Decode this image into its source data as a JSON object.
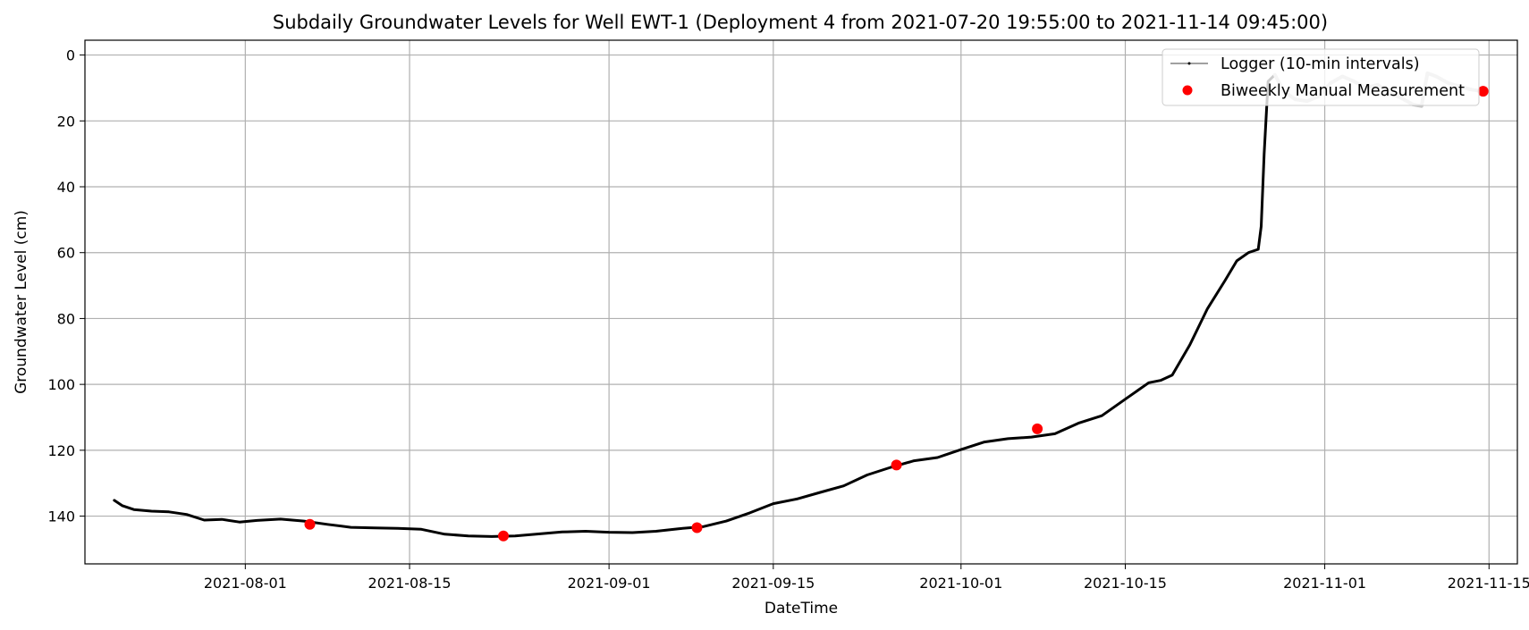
{
  "chart_data": {
    "type": "line",
    "title": "Subdaily Groundwater Levels for Well EWT-1 (Deployment 4 from 2021-07-20 19:55:00 to 2021-11-14 09:45:00)",
    "xlabel": "DateTime",
    "ylabel": "Groundwater Level (cm)",
    "x_ticks": [
      "2021-08-01",
      "2021-08-15",
      "2021-09-01",
      "2021-09-15",
      "2021-10-01",
      "2021-10-15",
      "2021-11-01",
      "2021-11-15"
    ],
    "y_ticks": [
      0,
      20,
      40,
      60,
      80,
      100,
      120,
      140
    ],
    "xlim": [
      "2021-07-18T08:00",
      "2021-11-17T10:00"
    ],
    "ylim": [
      154.5,
      -4.5
    ],
    "y_inverted": true,
    "grid": true,
    "legend_position": "top-right",
    "colors": {
      "logger": "#000000",
      "manual": "#ff0000",
      "grid": "#b0b0b0",
      "logger_after": "#c8c8c8"
    },
    "series": [
      {
        "name": "Logger (10-min intervals)",
        "style": "line",
        "points": [
          [
            "2021-07-20T19:55",
            135.2
          ],
          [
            "2021-07-21T12:00",
            136.8
          ],
          [
            "2021-07-22T12:00",
            138.0
          ],
          [
            "2021-07-24T00:00",
            138.5
          ],
          [
            "2021-07-25T12:00",
            138.7
          ],
          [
            "2021-07-27T00:00",
            139.5
          ],
          [
            "2021-07-28T12:00",
            141.2
          ],
          [
            "2021-07-30T00:00",
            141.0
          ],
          [
            "2021-07-31T12:00",
            141.8
          ],
          [
            "2021-08-02T00:00",
            141.3
          ],
          [
            "2021-08-04T00:00",
            140.9
          ],
          [
            "2021-08-06T00:00",
            141.5
          ],
          [
            "2021-08-08T00:00",
            142.5
          ],
          [
            "2021-08-10T00:00",
            143.4
          ],
          [
            "2021-08-12T00:00",
            143.6
          ],
          [
            "2021-08-14T00:00",
            143.7
          ],
          [
            "2021-08-16T00:00",
            144.0
          ],
          [
            "2021-08-18T00:00",
            145.5
          ],
          [
            "2021-08-20T00:00",
            146.0
          ],
          [
            "2021-08-22T00:00",
            146.2
          ],
          [
            "2021-08-24T00:00",
            146.0
          ],
          [
            "2021-08-26T00:00",
            145.4
          ],
          [
            "2021-08-28T00:00",
            144.8
          ],
          [
            "2021-08-30T00:00",
            144.6
          ],
          [
            "2021-09-01T00:00",
            144.9
          ],
          [
            "2021-09-03T00:00",
            145.0
          ],
          [
            "2021-09-05T00:00",
            144.6
          ],
          [
            "2021-09-07T00:00",
            143.8
          ],
          [
            "2021-09-09T00:00",
            143.2
          ],
          [
            "2021-09-11T00:00",
            141.5
          ],
          [
            "2021-09-13T00:00",
            139.0
          ],
          [
            "2021-09-15T00:00",
            136.2
          ],
          [
            "2021-09-17T00:00",
            134.8
          ],
          [
            "2021-09-19T00:00",
            132.8
          ],
          [
            "2021-09-21T00:00",
            130.8
          ],
          [
            "2021-09-23T00:00",
            127.5
          ],
          [
            "2021-09-25T00:00",
            125.2
          ],
          [
            "2021-09-27T00:00",
            123.2
          ],
          [
            "2021-09-29T00:00",
            122.2
          ],
          [
            "2021-10-01T00:00",
            119.8
          ],
          [
            "2021-10-03T00:00",
            117.5
          ],
          [
            "2021-10-05T00:00",
            116.5
          ],
          [
            "2021-10-07T00:00",
            116.0
          ],
          [
            "2021-10-09T00:00",
            115.0
          ],
          [
            "2021-10-11T00:00",
            111.8
          ],
          [
            "2021-10-13T00:00",
            109.5
          ],
          [
            "2021-10-15T00:00",
            104.5
          ],
          [
            "2021-10-17T00:00",
            99.5
          ],
          [
            "2021-10-18T00:00",
            98.8
          ],
          [
            "2021-10-19T00:00",
            97.2
          ],
          [
            "2021-10-20T12:00",
            88.0
          ],
          [
            "2021-10-22T00:00",
            77.0
          ],
          [
            "2021-10-23T12:00",
            68.5
          ],
          [
            "2021-10-24T12:00",
            62.5
          ],
          [
            "2021-10-25T12:00",
            60.0
          ],
          [
            "2021-10-26T08:00",
            59.0
          ],
          [
            "2021-10-26T14:00",
            52.0
          ],
          [
            "2021-10-26T20:00",
            30.0
          ],
          [
            "2021-10-27T04:00",
            8.0
          ],
          [
            "2021-10-27T18:00",
            6.0
          ],
          [
            "2021-10-28T12:00",
            11.0
          ],
          [
            "2021-10-29T12:00",
            13.5
          ],
          [
            "2021-10-30T12:00",
            14.0
          ],
          [
            "2021-10-31T12:00",
            12.5
          ],
          [
            "2021-11-01T12:00",
            8.5
          ],
          [
            "2021-11-02T12:00",
            6.5
          ],
          [
            "2021-11-03T12:00",
            8.0
          ],
          [
            "2021-11-04T12:00",
            10.0
          ],
          [
            "2021-11-05T12:00",
            9.0
          ],
          [
            "2021-11-06T12:00",
            11.5
          ],
          [
            "2021-11-07T12:00",
            13.0
          ],
          [
            "2021-11-08T12:00",
            15.0
          ],
          [
            "2021-11-09T06:00",
            15.5
          ],
          [
            "2021-11-09T18:00",
            5.5
          ],
          [
            "2021-11-10T12:00",
            6.5
          ],
          [
            "2021-11-11T12:00",
            8.5
          ],
          [
            "2021-11-12T12:00",
            9.5
          ],
          [
            "2021-11-13T12:00",
            10.5
          ],
          [
            "2021-11-14T09:45",
            11.0
          ]
        ]
      },
      {
        "name": "Biweekly Manual Measurement",
        "style": "scatter",
        "points": [
          [
            "2021-08-06T12:00",
            142.5
          ],
          [
            "2021-08-23T00:00",
            146.0
          ],
          [
            "2021-09-08T12:00",
            143.5
          ],
          [
            "2021-09-25T12:00",
            124.5
          ],
          [
            "2021-10-07T12:00",
            113.5
          ],
          [
            "2021-11-14T12:00",
            11.0
          ]
        ]
      }
    ]
  }
}
